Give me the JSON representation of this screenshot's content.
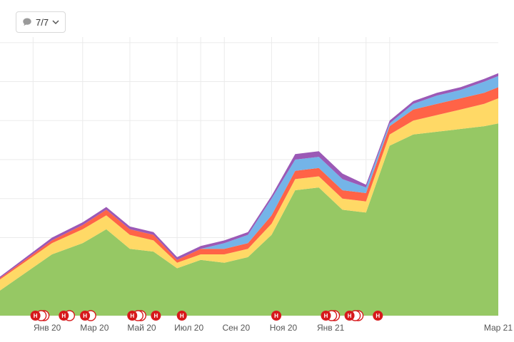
{
  "filter": {
    "label": "7/7",
    "icon": "comment-icon",
    "arrow_icon": "chevron-down-icon"
  },
  "colors": {
    "series": [
      "#96c864",
      "#ffd966",
      "#ff6347",
      "#74b4e8",
      "#9b59b6"
    ],
    "badge": "#d7191c",
    "grid": "#ebebeb"
  },
  "chart_data": {
    "type": "area",
    "stacked": true,
    "title": "",
    "xlabel": "",
    "ylabel": "",
    "grid": true,
    "legend": "none",
    "x_tick_labels": [
      "Янв 20",
      "Мар 20",
      "Май 20",
      "Июл 20",
      "Сен 20",
      "Ноя 20",
      "Янв 21",
      "Мар 21"
    ],
    "x": [
      0,
      2.2,
      3.5,
      4.5,
      5.5,
      6.5,
      7.5,
      8.5,
      9.5,
      10.5,
      11.5,
      12.5,
      13.5,
      14.5,
      15.5,
      16.5,
      17.5,
      18.5,
      19.5,
      20.5,
      21.1
    ],
    "series": [
      {
        "values": [
          9,
          22,
          26,
          31,
          24,
          23,
          17,
          20,
          19,
          21,
          29,
          45,
          46,
          38,
          37,
          61,
          65,
          66,
          67,
          68,
          69
        ]
      },
      {
        "values": [
          4,
          4,
          5,
          5,
          5,
          4,
          2,
          2,
          3,
          3,
          4,
          4,
          4,
          4,
          4,
          4,
          5,
          6,
          7,
          8,
          9
        ]
      },
      {
        "values": [
          0.5,
          1,
          1.5,
          2,
          2,
          2,
          1,
          2,
          2,
          2,
          3,
          3,
          3,
          3,
          3,
          3,
          4,
          4,
          4,
          4,
          4
        ]
      },
      {
        "values": [
          0,
          0,
          0,
          0,
          0,
          0,
          0,
          0,
          2,
          3,
          6,
          4,
          4,
          4,
          2,
          1,
          2,
          3,
          3,
          4,
          4
        ]
      },
      {
        "values": [
          0.5,
          1,
          1,
          1,
          1,
          1,
          1,
          1,
          1,
          1,
          1,
          2,
          2,
          2,
          1,
          1,
          1,
          1,
          1,
          1,
          1
        ]
      }
    ],
    "ylim": [
      0,
      100
    ],
    "xlim": [
      0,
      21.1
    ],
    "y_gridlines": [
      0,
      14,
      28,
      42,
      56,
      70,
      84,
      98
    ],
    "x_gridlines": [
      1.4,
      3.5,
      5.5,
      7.5,
      8.5,
      9.5,
      11.5,
      13.5,
      15.5,
      16.5
    ],
    "annotations": [
      {
        "x": 1.5,
        "count": 3,
        "text": "H"
      },
      {
        "x": 2.7,
        "count": 2,
        "text": "H"
      },
      {
        "x": 3.6,
        "count": 2,
        "text": "H"
      },
      {
        "x": 5.6,
        "count": 3,
        "text": "H"
      },
      {
        "x": 6.6,
        "count": 1,
        "text": "H"
      },
      {
        "x": 7.7,
        "count": 1,
        "text": "H"
      },
      {
        "x": 11.7,
        "count": 1,
        "text": "H"
      },
      {
        "x": 13.8,
        "count": 3,
        "text": "H"
      },
      {
        "x": 14.8,
        "count": 3,
        "text": "H"
      },
      {
        "x": 16.0,
        "count": 1,
        "text": "H"
      }
    ]
  }
}
